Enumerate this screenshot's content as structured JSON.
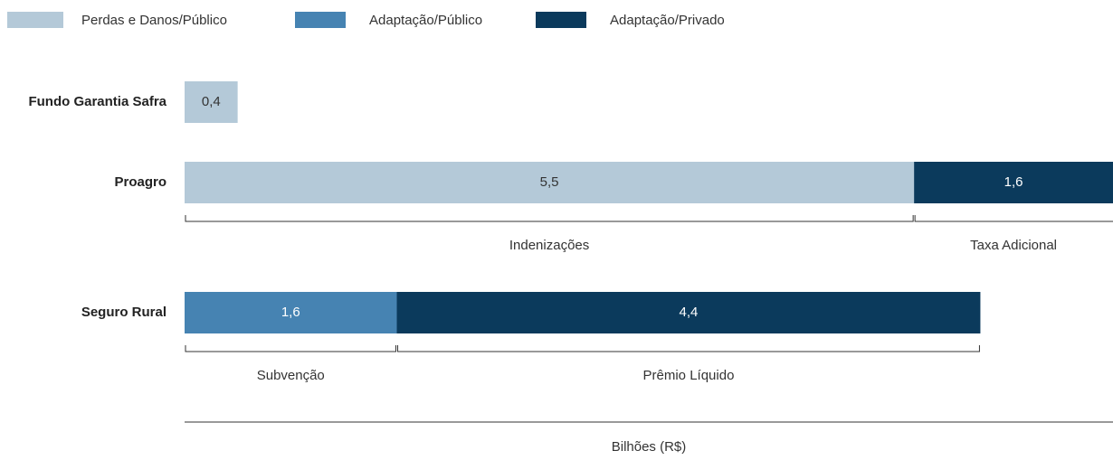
{
  "chart_data": {
    "type": "stacked-barh",
    "categories": [
      "Fundo Garantia Safra",
      "Proagro",
      "Seguro Rural"
    ],
    "series": [
      {
        "name": "Perdas e Danos/Público",
        "color": "#b4c9d8",
        "values": [
          0.4,
          5.5,
          null
        ],
        "value_labels": [
          "0,4",
          "5,5",
          null
        ],
        "segment_labels": [
          null,
          "Indenizações",
          null
        ]
      },
      {
        "name": "Adaptação/Público",
        "color": "#4683b2",
        "values": [
          null,
          null,
          1.6
        ],
        "value_labels": [
          null,
          null,
          "1,6"
        ],
        "segment_labels": [
          null,
          null,
          "Subvenção"
        ]
      },
      {
        "name": "Adaptação/Privado",
        "color": "#0b3a5c",
        "values": [
          null,
          1.6,
          4.4
        ],
        "value_labels": [
          null,
          "1,6",
          "4,4"
        ],
        "segment_labels": [
          null,
          "Taxa Adicional",
          "Prêmio Líquido"
        ]
      }
    ],
    "xlim": [
      0,
      7
    ],
    "xlabel": "Bilhões (R$)",
    "legend": "top"
  }
}
